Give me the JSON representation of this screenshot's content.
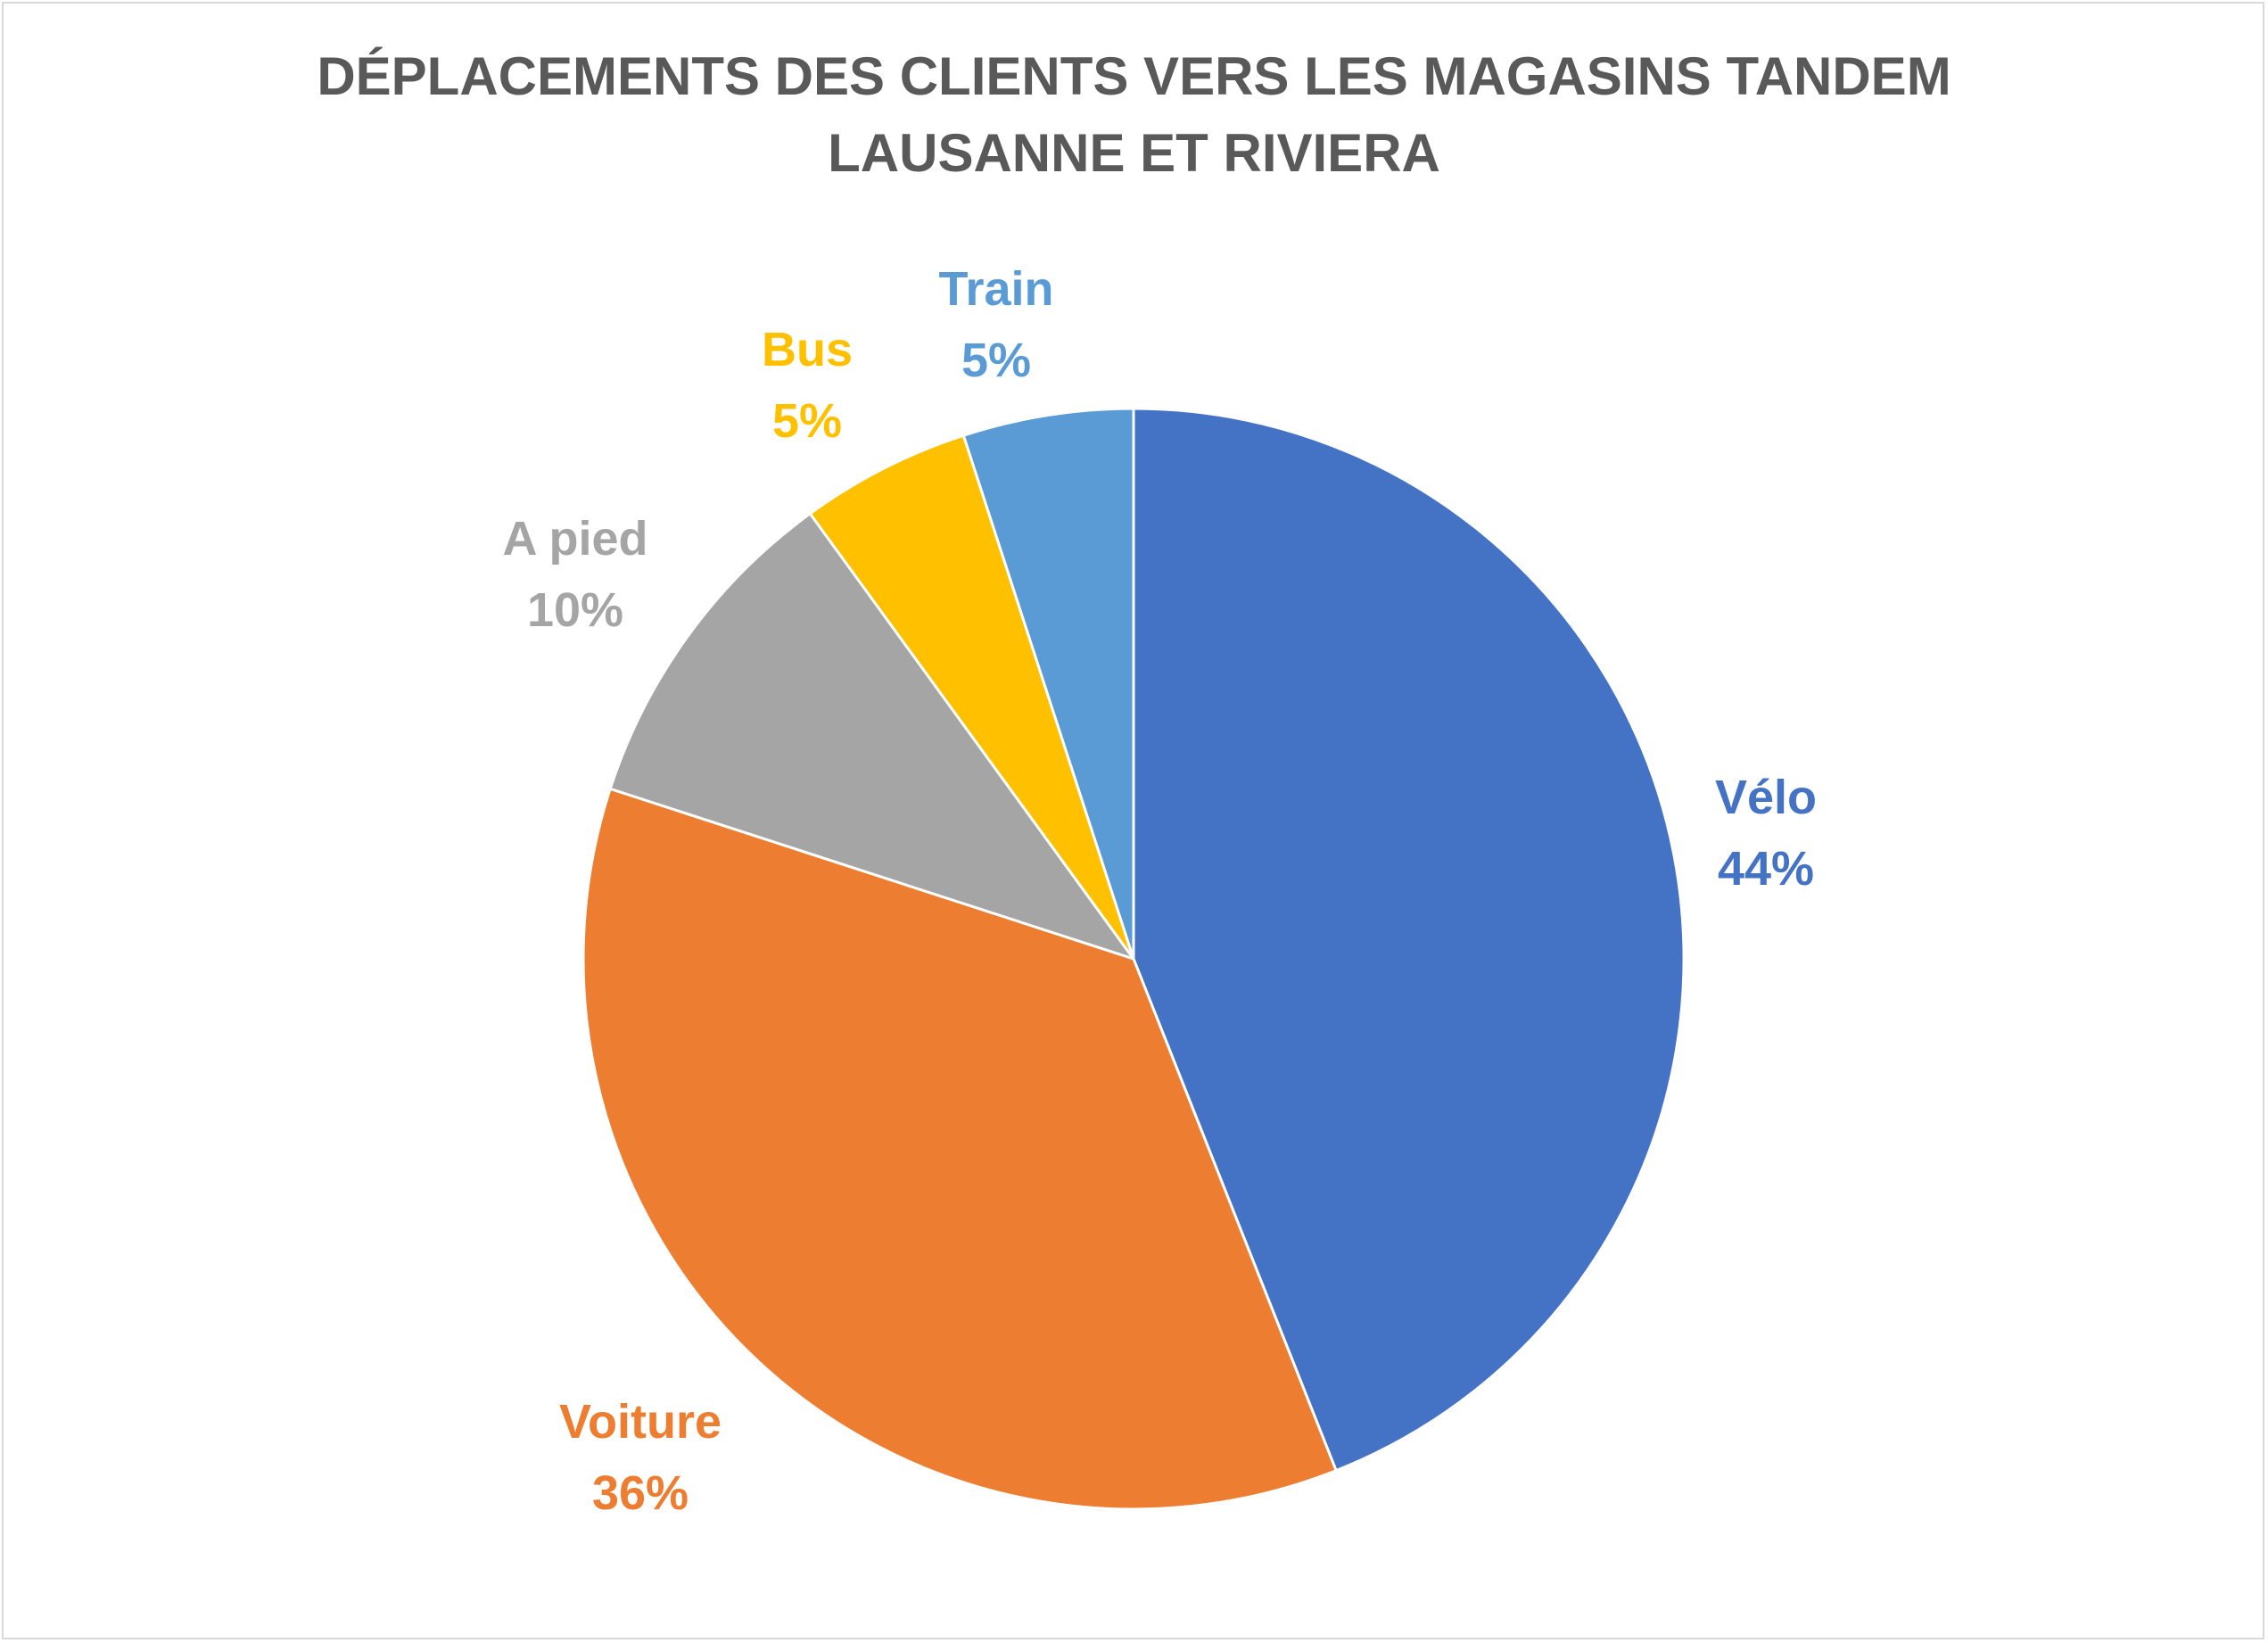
{
  "chart_data": {
    "type": "pie",
    "title_lines": [
      "DÉPLACEMENTS DES CLIENTS VERS LES MAGASINS TANDEM",
      "LAUSANNE ET RIVIERA"
    ],
    "categories": [
      "Vélo",
      "Voiture",
      "A pied",
      "Bus",
      "Train"
    ],
    "values": [
      44,
      36,
      10,
      5,
      5
    ],
    "value_labels": [
      "44%",
      "36%",
      "10%",
      "5%",
      "5%"
    ],
    "colors": [
      "#4472C4",
      "#ED7D31",
      "#A5A5A5",
      "#FFC000",
      "#5B9BD5"
    ],
    "start_angle": "12 o'clock",
    "direction": "clockwise",
    "legend": "none",
    "data_labels": "outside, category name and percentage"
  }
}
